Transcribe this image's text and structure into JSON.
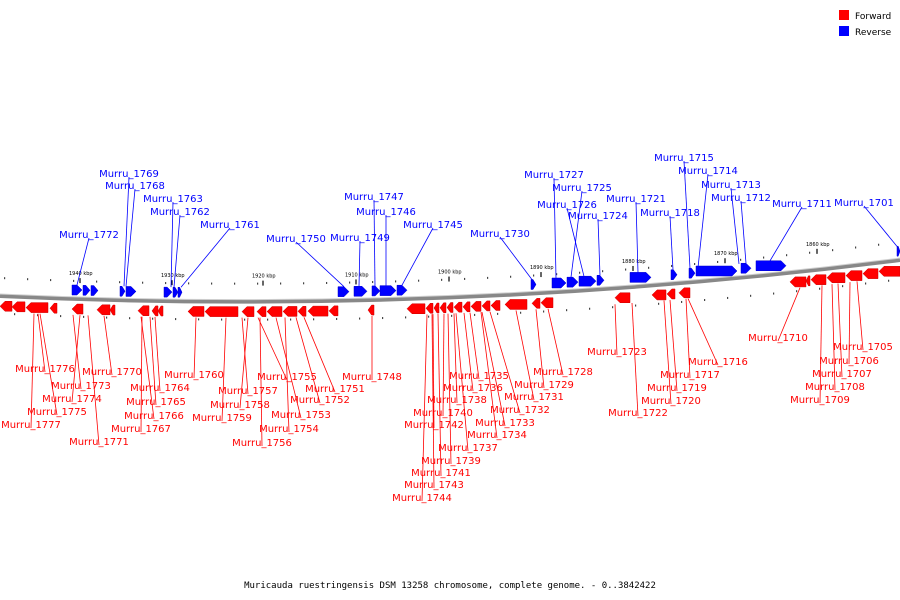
{
  "caption": "Muricauda ruestringensis DSM 13258 chromosome, complete genome. - 0..3842422",
  "legend": [
    {
      "name": "Forward",
      "color": "#ff0000"
    },
    {
      "name": "Reverse",
      "color": "#0000ff"
    }
  ],
  "colors": {
    "forward": "#ff0000",
    "reverse": "#0000ff",
    "backbone": "#888888"
  },
  "kbp_ticks": [
    "1940 kbp",
    "1930 kbp",
    "1920 kbp",
    "1910 kbp",
    "1900 kbp",
    "1890 kbp",
    "1880 kbp",
    "1870 kbp",
    "1860 kbp"
  ],
  "reverse_genes": [
    "Murru_1772",
    "Murru_1769",
    "Murru_1768",
    "Murru_1763",
    "Murru_1762",
    "Murru_1761",
    "Murru_1750",
    "Murru_1749",
    "Murru_1747",
    "Murru_1746",
    "Murru_1745",
    "Murru_1730",
    "Murru_1727",
    "Murru_1725",
    "Murru_1726",
    "Murru_1724",
    "Murru_1721",
    "Murru_1718",
    "Murru_1715",
    "Murru_1714",
    "Murru_1713",
    "Murru_1712",
    "Murru_1711",
    "Murru_1701"
  ],
  "forward_genes": [
    "Murru_1776",
    "Murru_1773",
    "Murru_1774",
    "Murru_1775",
    "Murru_1777",
    "Murru_1770",
    "Murru_1771",
    "Murru_1764",
    "Murru_1765",
    "Murru_1766",
    "Murru_1767",
    "Murru_1760",
    "Murru_1757",
    "Murru_1758",
    "Murru_1759",
    "Murru_1755",
    "Murru_1753",
    "Murru_1754",
    "Murru_1756",
    "Murru_1752",
    "Murru_1751",
    "Murru_1748",
    "Murru_1735",
    "Murru_1736",
    "Murru_1738",
    "Murru_1740",
    "Murru_1742",
    "Murru_1737",
    "Murru_1739",
    "Murru_1741",
    "Murru_1743",
    "Murru_1744",
    "Murru_1734",
    "Murru_1733",
    "Murru_1732",
    "Murru_1731",
    "Murru_1729",
    "Murru_1728",
    "Murru_1723",
    "Murru_1722",
    "Murru_1720",
    "Murru_1719",
    "Murru_1717",
    "Murru_1716",
    "Murru_1710",
    "Murru_1709",
    "Murru_1708",
    "Murru_1707",
    "Murru_1706",
    "Murru_1705"
  ]
}
